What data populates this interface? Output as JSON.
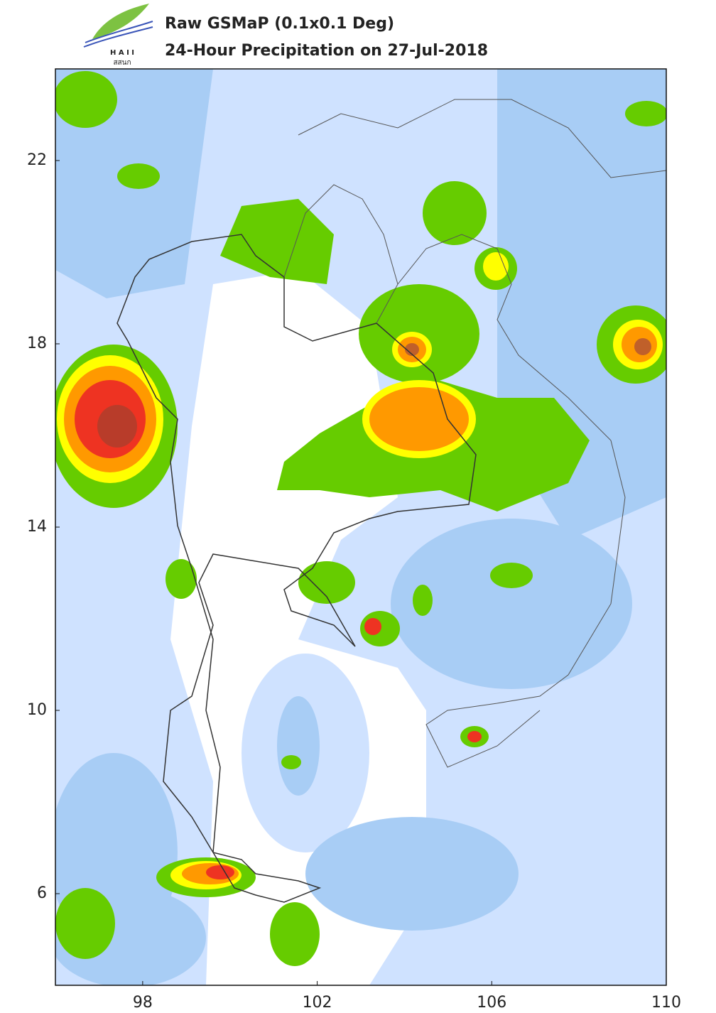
{
  "header": {
    "title": "Raw GSMaP (0.1x0.1 Deg)",
    "subtitle": "24-Hour Precipitation on 27-Jul-2018"
  },
  "logo": {
    "text": "H A I I",
    "thai": "สสนก"
  },
  "map": {
    "xlim": [
      96,
      110
    ],
    "ylim": [
      4,
      24
    ],
    "xticks": [
      98,
      102,
      106,
      110
    ],
    "yticks": [
      22,
      18,
      14,
      10,
      6
    ]
  }
}
